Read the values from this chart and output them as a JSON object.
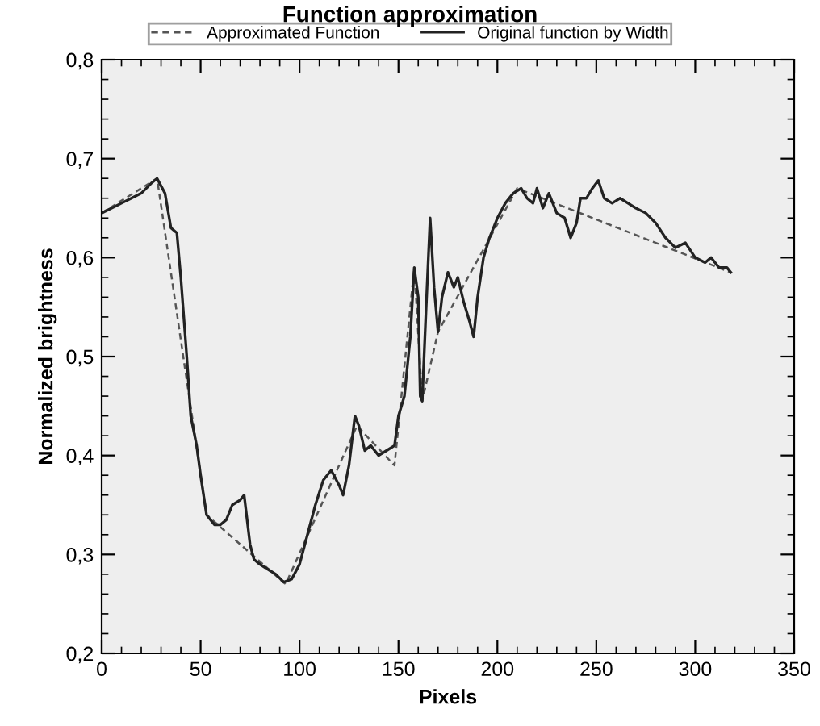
{
  "chart_data": {
    "type": "line",
    "title": "Function approximation",
    "xlabel": "Pixels",
    "ylabel": "Normalized brightness",
    "xlim": [
      0,
      350
    ],
    "xticks": [
      0,
      50,
      100,
      150,
      200,
      250,
      300,
      350
    ],
    "ylim": [
      0.2,
      0.8
    ],
    "yticks": [
      {
        "value": 0.2,
        "label": "0,2"
      },
      {
        "value": 0.3,
        "label": "0,3"
      },
      {
        "value": 0.4,
        "label": "0,4"
      },
      {
        "value": 0.5,
        "label": "0,5"
      },
      {
        "value": 0.6,
        "label": "0,6"
      },
      {
        "value": 0.7,
        "label": "0,7"
      },
      {
        "value": 0.8,
        "label": "0,8"
      }
    ],
    "grid": false,
    "legend": "top",
    "marker": "none",
    "series": [
      {
        "name": "Approximated Function",
        "color": "#555555",
        "line_style": "dashed",
        "x": [
          0,
          28,
          53,
          93,
          129,
          148,
          158,
          162,
          170,
          210,
          318
        ],
        "values": [
          0.645,
          0.68,
          0.34,
          0.27,
          0.43,
          0.39,
          0.59,
          0.455,
          0.525,
          0.67,
          0.585
        ]
      },
      {
        "name": "Original function by Width",
        "color": "#222222",
        "line_style": "solid",
        "x": [
          0,
          5,
          10,
          15,
          20,
          25,
          28,
          32,
          35,
          38,
          40,
          43,
          45,
          48,
          50,
          53,
          57,
          60,
          63,
          66,
          70,
          72,
          75,
          77,
          80,
          84,
          88,
          92,
          96,
          100,
          104,
          108,
          112,
          116,
          120,
          122,
          125,
          128,
          130,
          133,
          136,
          140,
          144,
          148,
          150,
          153,
          156,
          158,
          160,
          161,
          162,
          164,
          166,
          168,
          170,
          172,
          175,
          178,
          180,
          183,
          186,
          188,
          190,
          193,
          196,
          200,
          204,
          208,
          212,
          215,
          218,
          220,
          223,
          226,
          230,
          234,
          237,
          240,
          242,
          245,
          248,
          251,
          254,
          258,
          262,
          266,
          270,
          275,
          280,
          285,
          290,
          295,
          300,
          305,
          308,
          312,
          316,
          318
        ],
        "values": [
          0.645,
          0.65,
          0.655,
          0.66,
          0.665,
          0.675,
          0.68,
          0.665,
          0.63,
          0.625,
          0.58,
          0.5,
          0.44,
          0.41,
          0.38,
          0.34,
          0.33,
          0.33,
          0.335,
          0.35,
          0.355,
          0.36,
          0.31,
          0.295,
          0.29,
          0.285,
          0.28,
          0.272,
          0.275,
          0.29,
          0.32,
          0.35,
          0.375,
          0.385,
          0.37,
          0.36,
          0.39,
          0.44,
          0.43,
          0.405,
          0.41,
          0.4,
          0.405,
          0.41,
          0.44,
          0.46,
          0.52,
          0.59,
          0.56,
          0.46,
          0.455,
          0.55,
          0.64,
          0.57,
          0.525,
          0.56,
          0.585,
          0.57,
          0.58,
          0.555,
          0.535,
          0.52,
          0.56,
          0.6,
          0.62,
          0.64,
          0.655,
          0.665,
          0.67,
          0.66,
          0.655,
          0.67,
          0.65,
          0.665,
          0.645,
          0.64,
          0.62,
          0.635,
          0.66,
          0.66,
          0.67,
          0.678,
          0.66,
          0.655,
          0.66,
          0.655,
          0.65,
          0.645,
          0.635,
          0.62,
          0.61,
          0.615,
          0.6,
          0.595,
          0.6,
          0.59,
          0.59,
          0.585
        ]
      }
    ]
  }
}
